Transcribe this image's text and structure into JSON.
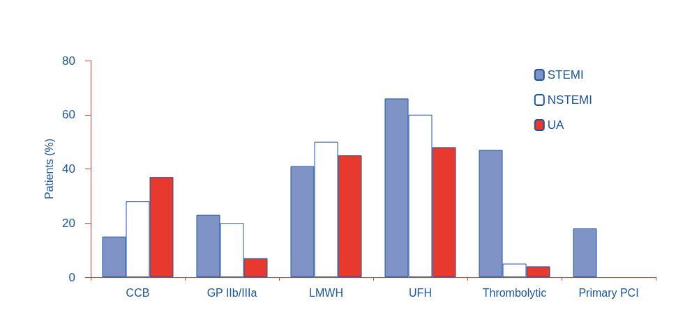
{
  "chart_data": {
    "type": "bar",
    "ylabel": "Patients (%)",
    "categories": [
      "CCB",
      "GP IIb/IIIa",
      "LMWH",
      "UFH",
      "Thrombolytic",
      "Primary PCI"
    ],
    "series": [
      {
        "name": "STEMI",
        "color": "#8093c6",
        "values": [
          15,
          23,
          41,
          66,
          47,
          18
        ]
      },
      {
        "name": "NSTEMI",
        "color": "#ffffff",
        "values": [
          28,
          20,
          50,
          60,
          5,
          null
        ]
      },
      {
        "name": "UA",
        "color": "#e8392f",
        "values": [
          37,
          7,
          45,
          48,
          4,
          null
        ]
      }
    ],
    "ylim": [
      0,
      80
    ],
    "yticks": [
      0,
      20,
      40,
      60,
      80
    ],
    "grid": false,
    "legend": "top right"
  }
}
